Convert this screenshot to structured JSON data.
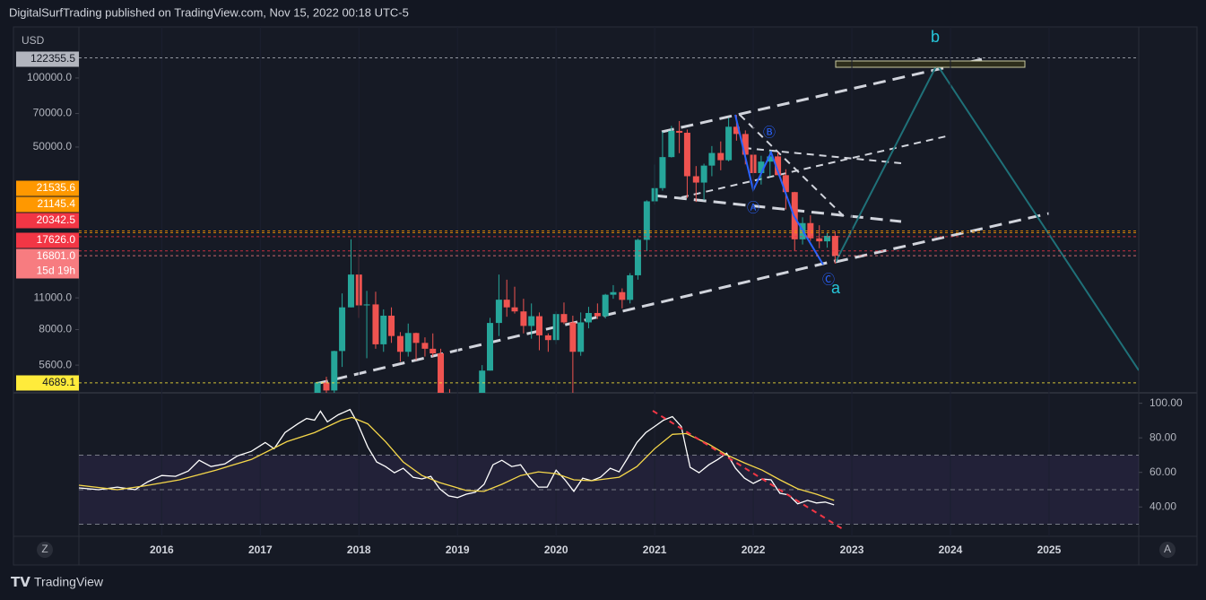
{
  "header": {
    "published": "DigitalSurfTrading published on TradingView.com, Nov 15, 2022 00:18 UTC-5"
  },
  "footer": {
    "brand": "TradingView"
  },
  "controls": {
    "left": "Z",
    "right": "A"
  },
  "chart_data": [
    {
      "type": "candlestick",
      "currency": "USD",
      "log_scale": true,
      "xlim": [
        2015.16,
        2025.91
      ],
      "xticks": [
        2016,
        2017,
        2018,
        2019,
        2020,
        2021,
        2022,
        2023,
        2024,
        2025
      ],
      "ylim": [
        4240,
        167000
      ],
      "yticks": [
        {
          "value": 5600,
          "label": "5600.0"
        },
        {
          "value": 8000,
          "label": "8000.0"
        },
        {
          "value": 11000,
          "label": "11000.0"
        },
        {
          "value": 50000,
          "label": "50000.0"
        },
        {
          "value": 70000,
          "label": "70000.0"
        },
        {
          "value": 100000,
          "label": "100000.0"
        }
      ],
      "up_color": "#26a69a",
      "down_color": "#ef5350",
      "x": [
        2017.58,
        2017.67,
        2017.75,
        2017.83,
        2017.92,
        2018,
        2018.08,
        2018.17,
        2018.25,
        2018.33,
        2018.42,
        2018.5,
        2018.58,
        2018.67,
        2018.75,
        2018.83,
        2018.92,
        2019,
        2019.08,
        2019.17,
        2019.25,
        2019.33,
        2019.42,
        2019.5,
        2019.58,
        2019.67,
        2019.75,
        2019.83,
        2019.92,
        2020,
        2020.08,
        2020.17,
        2020.25,
        2020.33,
        2020.42,
        2020.5,
        2020.58,
        2020.67,
        2020.75,
        2020.83,
        2020.92,
        2021,
        2021.08,
        2021.17,
        2021.25,
        2021.33,
        2021.42,
        2021.5,
        2021.58,
        2021.67,
        2021.75,
        2021.83,
        2021.92,
        2022,
        2022.08,
        2022.17,
        2022.25,
        2022.33,
        2022.42,
        2022.5,
        2022.58,
        2022.67,
        2022.75,
        2022.83
      ],
      "open": [
        2870,
        4700,
        4340,
        6450,
        10000,
        13900,
        10200,
        10300,
        6900,
        9200,
        7500,
        6400,
        7730,
        7000,
        6600,
        6300,
        4000,
        3700,
        3450,
        3850,
        4100,
        5300,
        8550,
        10800,
        10000,
        9600,
        8300,
        9150,
        7550,
        7200,
        9350,
        8600,
        6400,
        8600,
        9450,
        9150,
        11350,
        11650,
        10780,
        13800,
        19700,
        28990,
        33100,
        45200,
        58800,
        57700,
        37300,
        35000,
        41500,
        47100,
        43800,
        61300,
        57000,
        46300,
        38500,
        43200,
        45500,
        37700,
        31800,
        19800,
        23300,
        20000,
        19400,
        20500
      ],
      "high": [
        4750,
        4980,
        6470,
        11500,
        19800,
        17200,
        11800,
        11700,
        9800,
        10000,
        7800,
        8500,
        7760,
        7400,
        7700,
        6600,
        4400,
        4100,
        4200,
        4100,
        5600,
        9000,
        13900,
        13200,
        12300,
        10900,
        10400,
        9500,
        7700,
        9600,
        10500,
        9200,
        9500,
        10050,
        10400,
        11450,
        12500,
        12100,
        14100,
        19900,
        29300,
        41950,
        58350,
        61800,
        64900,
        59600,
        41300,
        42300,
        50500,
        52900,
        67000,
        69000,
        59100,
        48000,
        45800,
        48200,
        47400,
        40000,
        31900,
        24700,
        25200,
        22800,
        21100,
        21500
      ],
      "low": [
        2600,
        2950,
        4110,
        5500,
        10000,
        9000,
        6000,
        6600,
        6400,
        7000,
        5800,
        6100,
        5880,
        6100,
        6100,
        3650,
        3150,
        3350,
        3400,
        3700,
        4050,
        5300,
        7500,
        9100,
        9400,
        7700,
        7300,
        6500,
        6400,
        6900,
        8450,
        3800,
        6150,
        8100,
        8900,
        8950,
        10900,
        9900,
        10400,
        13200,
        17600,
        28100,
        32300,
        45000,
        47000,
        30000,
        28800,
        29300,
        37300,
        39600,
        43300,
        53300,
        42000,
        33000,
        34300,
        37200,
        37700,
        26700,
        17600,
        18800,
        19500,
        18100,
        18200,
        15500
      ],
      "close": [
        4700,
        4340,
        6450,
        10000,
        13900,
        10200,
        10300,
        6900,
        9200,
        7500,
        6400,
        7730,
        7000,
        6600,
        6300,
        4000,
        3700,
        3450,
        3850,
        4100,
        5300,
        8550,
        10800,
        10000,
        9600,
        8300,
        9150,
        7550,
        7200,
        9350,
        8600,
        6400,
        8600,
        9450,
        9150,
        11350,
        11650,
        10780,
        13800,
        19700,
        28990,
        33100,
        45200,
        58800,
        57700,
        37300,
        35000,
        41500,
        47100,
        43800,
        61300,
        57000,
        46300,
        38500,
        43200,
        45500,
        37700,
        31800,
        19800,
        23300,
        20000,
        19400,
        20500,
        16801
      ],
      "price_lines": [
        {
          "value": 122355.5,
          "label": "122355.5",
          "color": "#b2b5be"
        },
        {
          "value": 21535.6,
          "label": "21535.6",
          "color": "#ff9800"
        },
        {
          "value": 21145.4,
          "label": "21145.4",
          "color": "#ff9800"
        },
        {
          "value": 20342.5,
          "label": "20342.5",
          "color": "#f23645"
        },
        {
          "value": 17626,
          "label": "17626.0",
          "color": "#f23645"
        },
        {
          "value": 16801,
          "label": "16801.0",
          "sublabel": "15d 19h",
          "color": "#f77c80"
        },
        {
          "value": 4689.1,
          "label": "4689.1",
          "color": "#ffeb3b"
        }
      ],
      "annotations": [
        "b",
        "a",
        "Ⓐ",
        "Ⓑ",
        "Ⓒ"
      ]
    },
    {
      "type": "line",
      "ylim": [
        23,
        105
      ],
      "yticks": [
        {
          "value": 40,
          "label": "40.00"
        },
        {
          "value": 60,
          "label": "60.00"
        },
        {
          "value": 80,
          "label": "80.00"
        },
        {
          "value": 100,
          "label": "100.00"
        }
      ],
      "levels": [
        30,
        50,
        70
      ],
      "band_color": "#7e57c2",
      "series": [
        {
          "color": "#ffffff",
          "x": [
            2015.16,
            2015.36,
            2015.55,
            2015.73,
            2015.86,
            2016,
            2016.14,
            2016.27,
            2016.38,
            2016.5,
            2016.64,
            2016.77,
            2016.91,
            2017.05,
            2017.14,
            2017.25,
            2017.38,
            2017.47,
            2017.55,
            2017.61,
            2017.68,
            2017.79,
            2017.91,
            2017.98,
            2018.09,
            2018.18,
            2018.27,
            2018.36,
            2018.45,
            2018.55,
            2018.64,
            2018.73,
            2018.82,
            2018.91,
            2019,
            2019.09,
            2019.18,
            2019.27,
            2019.36,
            2019.45,
            2019.55,
            2019.64,
            2019.73,
            2019.82,
            2019.91,
            2020,
            2020.09,
            2020.18,
            2020.27,
            2020.36,
            2020.45,
            2020.55,
            2020.64,
            2020.73,
            2020.82,
            2020.91,
            2021,
            2021.09,
            2021.18,
            2021.27,
            2021.36,
            2021.45,
            2021.55,
            2021.64,
            2021.73,
            2021.82,
            2021.91,
            2022,
            2022.09,
            2022.18,
            2022.27,
            2022.36,
            2022.45,
            2022.55,
            2022.64,
            2022.73,
            2022.82
          ],
          "values": [
            51,
            50,
            51.5,
            50,
            54.6,
            58.2,
            57.7,
            60.8,
            67,
            63.4,
            64.9,
            69.6,
            72.2,
            77.3,
            73.7,
            83,
            88.1,
            91.2,
            90.2,
            95.4,
            89.2,
            93.3,
            96.4,
            89.2,
            74.7,
            66,
            63.4,
            59.8,
            62.4,
            57.2,
            56.2,
            57.7,
            50.5,
            46.4,
            45.4,
            47.4,
            48.5,
            53.1,
            64.4,
            67,
            63.4,
            64.4,
            57.2,
            51.5,
            51.5,
            61.3,
            55.7,
            49,
            56.7,
            55.2,
            57.2,
            62.4,
            60.3,
            68.6,
            77.3,
            83,
            86.6,
            90.2,
            92.3,
            86.6,
            62.9,
            59.8,
            64.4,
            67.5,
            71.1,
            62.4,
            56.7,
            53.6,
            56.2,
            55.7,
            47.9,
            46.9,
            41.8,
            43.8,
            42.3,
            42.8,
            41.2
          ]
        },
        {
          "color": "#f5d74a",
          "x": [
            2015.16,
            2015.55,
            2015.82,
            2016.18,
            2016.55,
            2016.91,
            2017.27,
            2017.55,
            2017.82,
            2017.93,
            2018.09,
            2018.27,
            2018.45,
            2018.64,
            2018.82,
            2019.09,
            2019.27,
            2019.45,
            2019.64,
            2019.82,
            2020,
            2020.18,
            2020.36,
            2020.64,
            2020.82,
            2021,
            2021.18,
            2021.32,
            2021.55,
            2021.73,
            2021.91,
            2022.09,
            2022.27,
            2022.45,
            2022.64,
            2022.82
          ],
          "values": [
            52.6,
            50,
            52.1,
            55.7,
            61.3,
            67.5,
            77.8,
            83,
            90.2,
            91.8,
            88.1,
            77.8,
            66,
            58.2,
            54.1,
            49.5,
            49,
            53.1,
            58.2,
            60.3,
            59.3,
            55.7,
            55.2,
            57.2,
            63.4,
            73.7,
            82,
            82.5,
            76.3,
            70.1,
            65.5,
            61.3,
            55.7,
            50.5,
            47.4,
            43.8
          ]
        }
      ]
    }
  ]
}
